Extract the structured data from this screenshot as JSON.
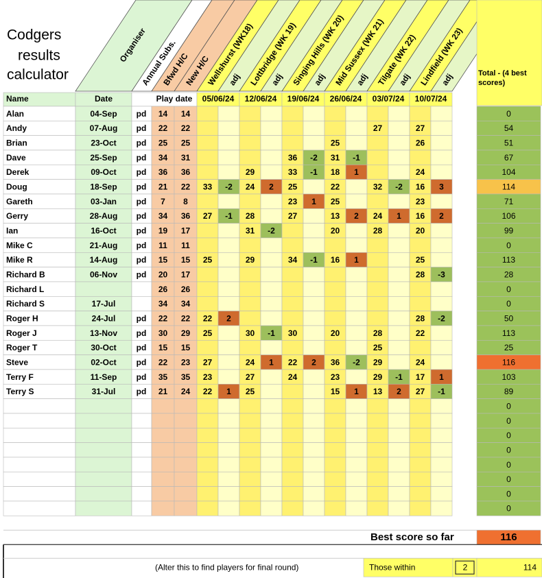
{
  "title_lines": [
    "Codgers",
    "results",
    "calculator"
  ],
  "header": {
    "diagonal": [
      "Organiser",
      "Annual Subs.",
      "Bfwd H/C",
      "New H/C",
      "Wellshurst (WK18)",
      "adj",
      "Lottbridge (WK 19)",
      "adj",
      "Singing Hills (WK 20)",
      "adj",
      "Mid Sussex (WK 21)",
      "adj",
      "Tilgate (WK 22)",
      "adj",
      "Lindfield (WK 23)",
      "adj"
    ],
    "total": "Total - (4 best scores)",
    "row": [
      "Name",
      "Date",
      "Play date"
    ],
    "dates": [
      "05/06/24",
      "12/06/24",
      "19/06/24",
      "26/06/24",
      "03/07/24",
      "10/07/24"
    ]
  },
  "rows": [
    {
      "name": "Alan",
      "date": "04-Sep",
      "paid": "pd",
      "bfwd": 14,
      "new": 14,
      "total": 0
    },
    {
      "name": "Andy",
      "date": "07-Aug",
      "paid": "pd",
      "bfwd": 22,
      "new": 22,
      "scores": [
        null,
        null,
        null,
        null,
        null,
        null,
        null,
        null,
        27,
        null,
        27,
        null
      ],
      "total": 54
    },
    {
      "name": "Brian",
      "date": "23-Oct",
      "paid": "pd",
      "bfwd": 25,
      "new": 25,
      "scores": [
        null,
        null,
        null,
        null,
        null,
        null,
        25,
        null,
        null,
        null,
        26,
        null
      ],
      "total": 51
    },
    {
      "name": "Dave",
      "date": "25-Sep",
      "paid": "pd",
      "bfwd": 34,
      "new": 31,
      "scores": [
        null,
        null,
        null,
        null,
        36,
        -2,
        31,
        -1,
        null,
        null,
        null,
        null
      ],
      "total": 67
    },
    {
      "name": "Derek",
      "date": "09-Oct",
      "paid": "pd",
      "bfwd": 36,
      "new": 36,
      "scores": [
        null,
        null,
        29,
        null,
        33,
        -1,
        18,
        1,
        null,
        null,
        24,
        null
      ],
      "total": 104
    },
    {
      "name": "Doug",
      "date": "18-Sep",
      "paid": "pd",
      "bfwd": 21,
      "new": 22,
      "scores": [
        33,
        -2,
        24,
        2,
        25,
        null,
        22,
        null,
        32,
        -2,
        16,
        3
      ],
      "total": 114
    },
    {
      "name": "Gareth",
      "date": "03-Jan",
      "paid": "pd",
      "bfwd": 7,
      "new": 8,
      "scores": [
        null,
        null,
        null,
        null,
        23,
        1,
        25,
        null,
        null,
        null,
        23,
        null
      ],
      "total": 71
    },
    {
      "name": "Gerry",
      "date": "28-Aug",
      "paid": "pd",
      "bfwd": 34,
      "new": 36,
      "scores": [
        27,
        -1,
        28,
        null,
        27,
        null,
        13,
        2,
        24,
        1,
        16,
        2
      ],
      "total": 106
    },
    {
      "name": "Ian",
      "date": "16-Oct",
      "paid": "pd",
      "bfwd": 19,
      "new": 17,
      "scores": [
        null,
        null,
        31,
        -2,
        null,
        null,
        20,
        null,
        28,
        null,
        20,
        null
      ],
      "total": 99
    },
    {
      "name": "Mike C",
      "date": "21-Aug",
      "paid": "pd",
      "bfwd": 11,
      "new": 11,
      "total": 0
    },
    {
      "name": "Mike R",
      "date": "14-Aug",
      "paid": "pd",
      "bfwd": 15,
      "new": 15,
      "scores": [
        25,
        null,
        29,
        null,
        34,
        -1,
        16,
        1,
        null,
        null,
        25,
        null
      ],
      "total": 113
    },
    {
      "name": "Richard B",
      "date": "06-Nov",
      "paid": "pd",
      "bfwd": 20,
      "new": 17,
      "scores": [
        null,
        null,
        null,
        null,
        null,
        null,
        null,
        null,
        null,
        null,
        28,
        -3
      ],
      "total": 28
    },
    {
      "name": "Richard L",
      "bfwd": 26,
      "new": 26,
      "total": 0
    },
    {
      "name": "Richard S",
      "date": "17-Jul",
      "bfwd": 34,
      "new": 34,
      "total": 0
    },
    {
      "name": "Roger H",
      "date": "24-Jul",
      "paid": "pd",
      "bfwd": 22,
      "new": 22,
      "scores": [
        22,
        2,
        null,
        null,
        null,
        null,
        null,
        null,
        null,
        null,
        28,
        -2
      ],
      "total": 50
    },
    {
      "name": "Roger J",
      "date": "13-Nov",
      "paid": "pd",
      "bfwd": 30,
      "new": 29,
      "scores": [
        25,
        null,
        30,
        -1,
        30,
        null,
        20,
        null,
        28,
        null,
        22,
        null
      ],
      "total": 113
    },
    {
      "name": "Roger T",
      "date": "30-Oct",
      "paid": "pd",
      "bfwd": 15,
      "new": 15,
      "scores": [
        null,
        null,
        null,
        null,
        null,
        null,
        null,
        null,
        25,
        null,
        null,
        null
      ],
      "total": 25
    },
    {
      "name": "Steve",
      "date": "02-Oct",
      "paid": "pd",
      "bfwd": 22,
      "new": 23,
      "scores": [
        27,
        null,
        24,
        1,
        22,
        2,
        36,
        -2,
        29,
        null,
        24,
        null
      ],
      "total": 116
    },
    {
      "name": "Terry F",
      "date": "11-Sep",
      "paid": "pd",
      "bfwd": 35,
      "new": 35,
      "scores": [
        23,
        null,
        27,
        null,
        24,
        null,
        23,
        null,
        29,
        -1,
        17,
        1
      ],
      "total": 103
    },
    {
      "name": "Terry S",
      "date": "31-Jul",
      "paid": "pd",
      "bfwd": 21,
      "new": 24,
      "scores": [
        22,
        1,
        25,
        null,
        null,
        null,
        15,
        1,
        13,
        2,
        27,
        -1
      ],
      "total": 89
    },
    {
      "total": 0
    },
    {
      "total": 0
    },
    {
      "total": 0
    },
    {
      "total": 0
    },
    {
      "total": 0
    },
    {
      "total": 0
    },
    {
      "total": 0
    },
    {
      "total": 0
    }
  ],
  "footer": {
    "best_label": "Best score so far",
    "best_value": 116,
    "note": "(Alter this to find players for final round)",
    "within_label": "Those within",
    "within_value": 2,
    "threshold": 114
  }
}
